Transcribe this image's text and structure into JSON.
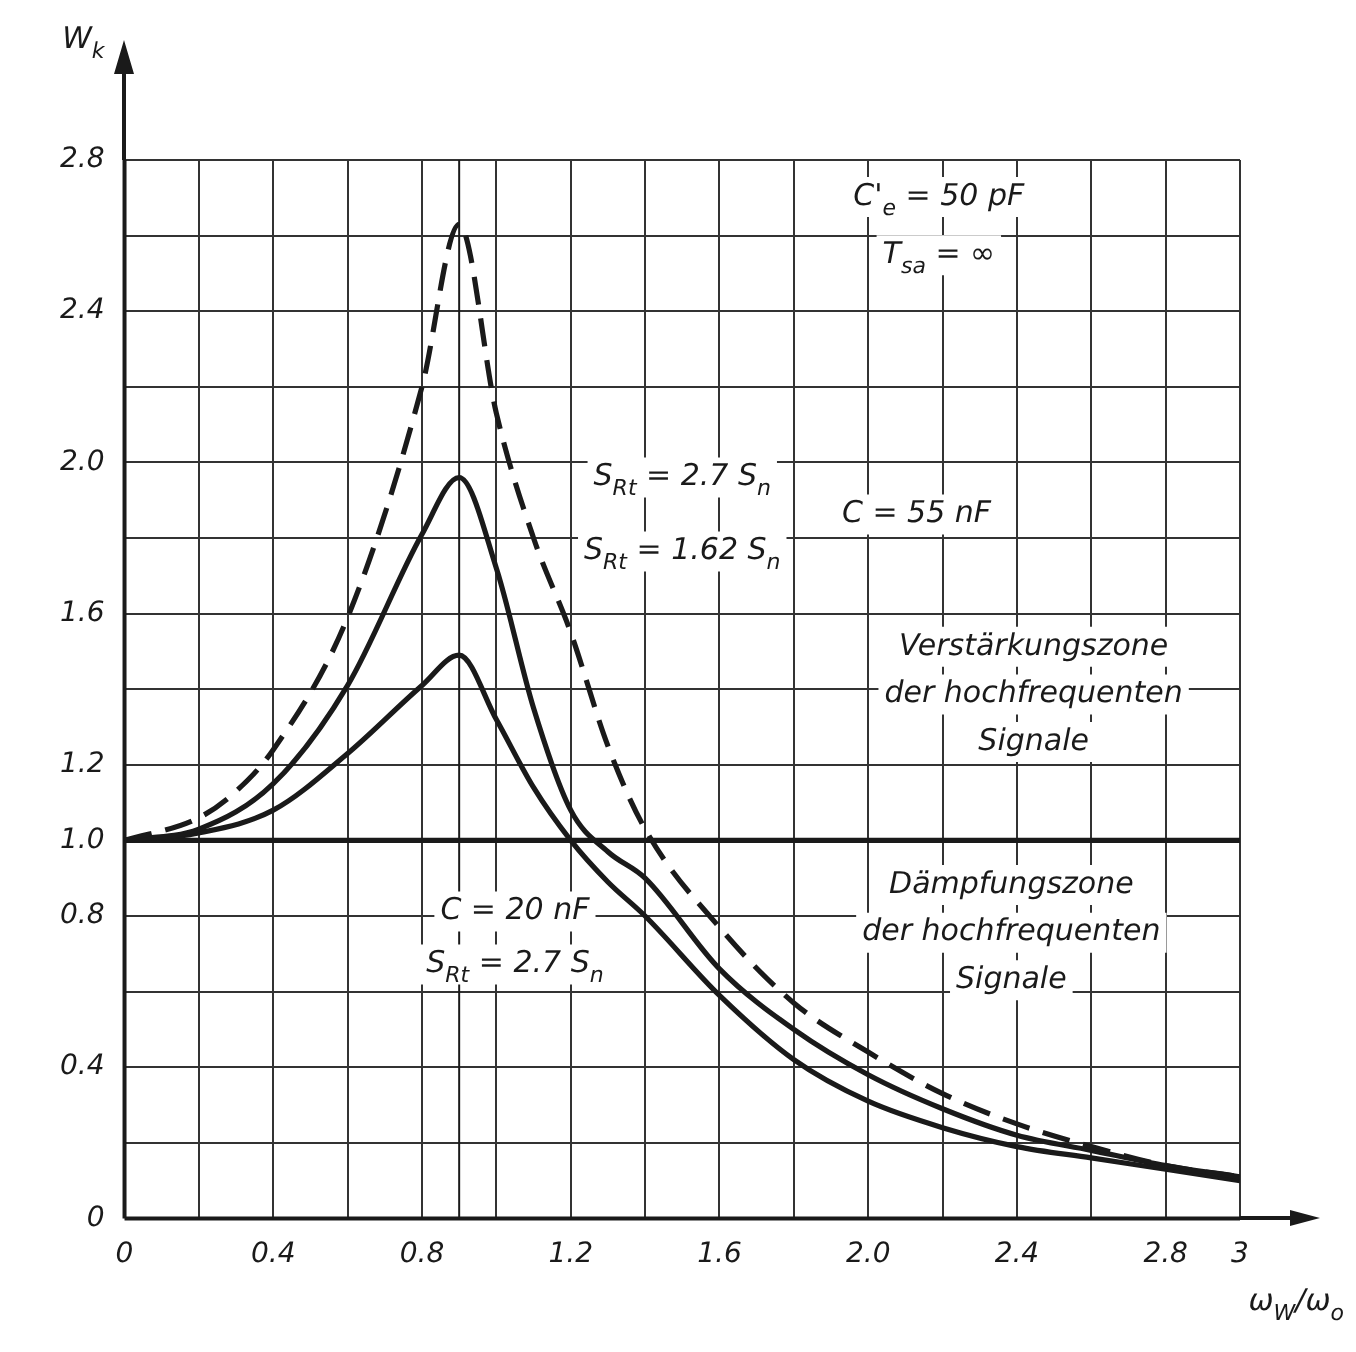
{
  "chart_data": {
    "type": "line",
    "xlabel": "ω$_{W}$/ω$_{o}$",
    "ylabel": "W$_{k}$",
    "xlim": [
      0,
      3
    ],
    "ylim": [
      0,
      2.8
    ],
    "xticks": [
      0,
      {
        "value": 0.2,
        "label": null
      },
      0.4,
      {
        "value": 0.6,
        "label": null
      },
      0.8,
      {
        "value": 1.0,
        "label": null
      },
      1.2,
      {
        "value": 1.4,
        "label": null
      },
      1.6,
      {
        "value": 1.8,
        "label": null
      },
      {
        "value": 2.0,
        "label": "2.0"
      },
      {
        "value": 2.2,
        "label": null
      },
      2.4,
      {
        "value": 2.6,
        "label": null
      },
      2.8,
      3
    ],
    "yticks": [
      0,
      {
        "value": 0.2,
        "label": null
      },
      0.4,
      {
        "value": 0.6,
        "label": null
      },
      0.8,
      {
        "value": 1.0,
        "label": "1.0"
      },
      1.2,
      {
        "value": 1.4,
        "label": null
      },
      1.6,
      {
        "value": 1.8,
        "label": null
      },
      {
        "value": 2.0,
        "label": "2.0"
      },
      {
        "value": 2.2,
        "label": null
      },
      2.4,
      {
        "value": 2.6,
        "label": null
      },
      2.8
    ],
    "grid": true,
    "legend": false,
    "marker": "none",
    "series": [
      {
        "color": "#1a1a1a",
        "line_style": "dashed",
        "x": [
          0,
          0.2,
          0.3,
          0.4,
          0.6,
          0.8,
          0.9,
          1.0,
          1.1,
          1.2,
          1.3,
          1.4,
          1.6,
          1.8,
          2.0,
          2.2,
          2.4,
          2.6,
          2.8,
          3.0
        ],
        "values": [
          1.0,
          1.06,
          1.13,
          1.24,
          1.59,
          2.2,
          2.63,
          2.13,
          1.8,
          1.55,
          1.25,
          1.03,
          0.77,
          0.57,
          0.44,
          0.33,
          0.25,
          0.19,
          0.14,
          0.11
        ]
      },
      {
        "color": "#1a1a1a",
        "line_style": "solid",
        "x": [
          0,
          0.2,
          0.4,
          0.6,
          0.8,
          0.9,
          1.0,
          1.1,
          1.2,
          1.3,
          1.4,
          1.6,
          1.8,
          2.0,
          2.2,
          2.4,
          2.6,
          2.8,
          3.0
        ],
        "values": [
          1.0,
          1.03,
          1.15,
          1.41,
          1.81,
          1.96,
          1.72,
          1.35,
          1.08,
          0.97,
          0.9,
          0.66,
          0.5,
          0.38,
          0.29,
          0.22,
          0.18,
          0.14,
          0.11
        ]
      },
      {
        "color": "#1a1a1a",
        "line_style": "solid",
        "x": [
          0,
          0.2,
          0.4,
          0.6,
          0.8,
          0.9,
          1.0,
          1.1,
          1.2,
          1.3,
          1.4,
          1.6,
          1.8,
          2.0,
          2.2,
          2.4,
          2.6,
          2.8,
          3.0
        ],
        "values": [
          1.0,
          1.02,
          1.08,
          1.23,
          1.41,
          1.49,
          1.32,
          1.14,
          1.0,
          0.89,
          0.8,
          0.59,
          0.42,
          0.31,
          0.24,
          0.19,
          0.16,
          0.13,
          0.1
        ]
      }
    ],
    "ref_lines": [
      {
        "axis": "y",
        "value": 1.0,
        "color": "#1a1a1a"
      },
      {
        "axis": "x",
        "value": 0.9,
        "color": "#1a1a1a"
      }
    ],
    "annotations": [
      "C'$_{e}$ = 50 pF",
      "T$_{sa}$ = ∞",
      "S$_{Rt}$ = 2.7 S$_{n}$",
      "S$_{Rt}$ = 1.62 S$_{n}$",
      "C = 55 nF",
      "Verstärkungszone",
      "der hochfrequenten",
      "Signale",
      "Dämpfungszone",
      "der hochfrequenten",
      "Signale",
      "C = 20 nF",
      "S$_{Rt}$ = 2.7 S$_{n}$"
    ]
  }
}
